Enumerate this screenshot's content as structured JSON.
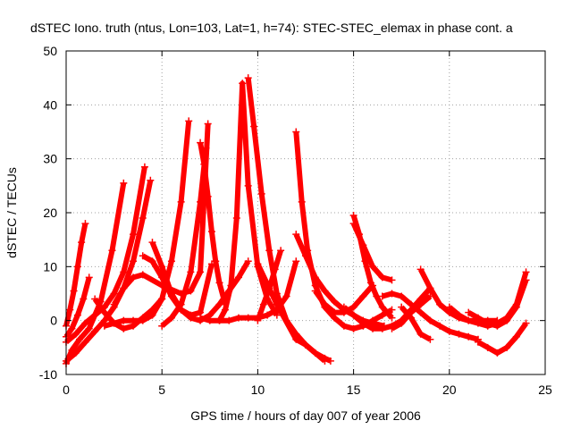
{
  "chart_data": {
    "type": "scatter",
    "title": "dSTEC Iono. truth (ntus, Lon=103, Lat=1, h=74): STEC-STEC_elemax in phase cont. a",
    "xlabel": "GPS time / hours of day 007 of year 2006",
    "ylabel": "dSTEC  / TECUs",
    "xlim": [
      0,
      25
    ],
    "ylim": [
      -10,
      50
    ],
    "x_ticks": [
      "0",
      "5",
      "10",
      "15",
      "20",
      "25"
    ],
    "y_ticks": [
      "-10",
      "0",
      "10",
      "20",
      "30",
      "40",
      "50"
    ],
    "grid": true,
    "marker": "+",
    "color": "#ff0000",
    "series": [
      {
        "x": [
          0.0,
          0.2,
          0.4,
          0.6,
          0.8,
          1.0
        ],
        "y": [
          -1.0,
          2.0,
          5.5,
          10.0,
          14.5,
          18.0
        ]
      },
      {
        "x": [
          0.0,
          0.3,
          0.6,
          0.9,
          1.2
        ],
        "y": [
          -3.0,
          -1.5,
          1.0,
          4.0,
          8.0
        ]
      },
      {
        "x": [
          0.0,
          0.3,
          0.7,
          1.2,
          1.8,
          2.4,
          3.0
        ],
        "y": [
          -8.0,
          -5.5,
          -3.5,
          -1.5,
          3.5,
          13.0,
          25.5
        ]
      },
      {
        "x": [
          0.0,
          0.5,
          1.0,
          1.5,
          2.0,
          2.5,
          3.0,
          3.5,
          4.1
        ],
        "y": [
          -4.0,
          -2.5,
          -0.5,
          1.0,
          2.5,
          5.0,
          9.0,
          16.0,
          28.5
        ]
      },
      {
        "x": [
          0.0,
          0.5,
          1.0,
          1.5,
          2.0,
          2.5,
          3.0,
          3.5,
          4.0,
          4.4
        ],
        "y": [
          -7.5,
          -6.0,
          -4.0,
          -2.0,
          0.0,
          2.5,
          6.0,
          11.0,
          19.0,
          26.0
        ]
      },
      {
        "x": [
          1.5,
          2.0,
          2.5,
          3.0,
          3.5,
          4.0,
          4.5,
          5.0
        ],
        "y": [
          4.0,
          1.5,
          -0.5,
          -1.5,
          -1.0,
          0.5,
          2.0,
          4.0
        ]
      },
      {
        "x": [
          2.0,
          2.5,
          3.0,
          3.5,
          4.0,
          4.5,
          5.0,
          5.5,
          6.0,
          6.4
        ],
        "y": [
          -1.0,
          -0.5,
          0.0,
          0.0,
          0.0,
          1.0,
          4.0,
          11.0,
          22.0,
          37.0
        ]
      },
      {
        "x": [
          2.5,
          3.0,
          3.5,
          4.0,
          5.0,
          6.0,
          6.5,
          7.0,
          7.4
        ],
        "y": [
          3.0,
          6.0,
          8.0,
          8.5,
          6.5,
          5.0,
          5.5,
          9.0,
          36.5
        ]
      },
      {
        "x": [
          4.0,
          4.5,
          5.0,
          5.5,
          6.0,
          6.5,
          7.0,
          7.6
        ],
        "y": [
          12.0,
          11.0,
          8.0,
          4.5,
          2.0,
          1.0,
          1.5,
          10.5
        ]
      },
      {
        "x": [
          4.5,
          5.0,
          5.5,
          6.0,
          6.5,
          7.0,
          7.5,
          8.0,
          8.5,
          9.0,
          9.5
        ],
        "y": [
          14.5,
          10.0,
          5.0,
          2.0,
          0.5,
          0.0,
          1.0,
          3.0,
          5.5,
          8.0,
          11.0
        ]
      },
      {
        "x": [
          5.0,
          5.5,
          6.0,
          6.5,
          7.0,
          7.3
        ],
        "y": [
          -1.0,
          0.5,
          3.0,
          9.0,
          22.0,
          32.0
        ]
      },
      {
        "x": [
          7.0,
          7.5,
          8.0,
          8.5,
          9.0,
          9.5,
          10.0,
          10.5,
          11.0,
          11.5,
          12.0
        ],
        "y": [
          0.5,
          0.0,
          0.0,
          0.0,
          0.5,
          0.5,
          0.5,
          1.0,
          2.0,
          4.5,
          11.0
        ]
      },
      {
        "x": [
          7.0,
          7.2,
          7.4,
          7.6,
          7.8,
          8.0,
          8.3
        ],
        "y": [
          33.0,
          29.0,
          23.0,
          16.5,
          11.0,
          7.0,
          3.0
        ]
      },
      {
        "x": [
          8.0,
          8.3,
          8.6,
          8.9,
          9.2,
          9.5,
          10.0,
          10.5,
          11.0
        ],
        "y": [
          0.0,
          2.0,
          6.5,
          19.0,
          44.0,
          25.0,
          10.0,
          4.0,
          1.0
        ]
      },
      {
        "x": [
          9.5,
          9.8,
          10.2,
          10.6,
          11.0,
          11.5,
          12.0,
          12.5,
          13.0,
          13.5
        ],
        "y": [
          45.0,
          36.0,
          23.5,
          13.0,
          5.0,
          0.0,
          -2.5,
          -4.5,
          -6.0,
          -7.5
        ]
      },
      {
        "x": [
          10.0,
          10.3,
          10.6,
          10.9,
          11.2
        ],
        "y": [
          0.0,
          3.0,
          6.0,
          9.5,
          13.0
        ]
      },
      {
        "x": [
          10.0,
          11.0,
          12.0,
          12.5,
          13.0,
          13.5,
          13.8
        ],
        "y": [
          10.5,
          3.0,
          -3.5,
          -4.5,
          -6.0,
          -7.0,
          -7.5
        ]
      },
      {
        "x": [
          12.0,
          12.3,
          12.6,
          13.0,
          13.5,
          14.0,
          14.5,
          15.0,
          15.5,
          16.0,
          16.5,
          17.0
        ],
        "y": [
          35.0,
          22.0,
          13.0,
          6.5,
          2.5,
          0.5,
          -1.0,
          -1.5,
          -1.0,
          0.0,
          1.0,
          2.0
        ]
      },
      {
        "x": [
          12.0,
          12.5,
          13.0,
          13.5,
          14.0,
          14.5,
          15.0,
          15.5,
          16.0,
          16.6
        ],
        "y": [
          16.0,
          12.0,
          8.0,
          5.5,
          3.5,
          2.0,
          1.0,
          0.0,
          -0.5,
          -1.0
        ]
      },
      {
        "x": [
          13.0,
          13.5,
          14.0,
          14.5,
          15.0,
          15.5,
          16.0
        ],
        "y": [
          5.5,
          3.0,
          1.5,
          1.5,
          2.5,
          4.5,
          6.5
        ]
      },
      {
        "x": [
          14.5,
          15.0,
          15.5,
          16.0,
          16.5,
          17.0,
          17.5,
          18.0,
          18.5,
          19.0
        ],
        "y": [
          2.5,
          1.0,
          -0.5,
          -1.5,
          -1.5,
          -1.0,
          0.0,
          2.0,
          4.0,
          6.0
        ]
      },
      {
        "x": [
          15.0,
          15.3,
          15.6,
          15.9,
          16.2,
          16.5,
          17.0
        ],
        "y": [
          19.5,
          16.0,
          11.0,
          7.0,
          4.5,
          2.5,
          0.5
        ]
      },
      {
        "x": [
          15.0,
          15.5,
          16.0,
          16.5,
          17.0
        ],
        "y": [
          18.0,
          14.0,
          10.0,
          8.0,
          7.5
        ]
      },
      {
        "x": [
          16.5,
          17.0,
          17.5,
          18.0,
          18.5,
          19.0,
          19.5,
          20.0,
          20.5,
          21.0,
          21.5
        ],
        "y": [
          4.5,
          5.0,
          4.5,
          3.0,
          1.5,
          0.0,
          -1.0,
          -2.0,
          -2.5,
          -3.0,
          -3.5
        ]
      },
      {
        "x": [
          17.0,
          17.5,
          18.0,
          18.5,
          19.0
        ],
        "y": [
          -1.5,
          -0.5,
          1.5,
          3.0,
          4.5
        ]
      },
      {
        "x": [
          17.5,
          18.0,
          18.5,
          19.0
        ],
        "y": [
          2.5,
          0.5,
          -2.5,
          -3.5
        ]
      },
      {
        "x": [
          18.5,
          19.0,
          19.5,
          20.0,
          20.5,
          21.0,
          21.5,
          22.0,
          22.5
        ],
        "y": [
          9.5,
          6.0,
          3.0,
          1.5,
          0.5,
          0.0,
          0.0,
          0.0,
          0.0
        ]
      },
      {
        "x": [
          20.0,
          20.5,
          21.0,
          21.5,
          22.0,
          22.5,
          23.0,
          23.5,
          24.0
        ],
        "y": [
          2.5,
          1.0,
          0.0,
          -0.5,
          -1.0,
          -0.5,
          0.5,
          3.0,
          9.0
        ]
      },
      {
        "x": [
          21.0,
          21.5,
          22.0,
          22.5,
          23.0,
          23.5,
          24.0
        ],
        "y": [
          1.5,
          0.5,
          -0.5,
          -1.0,
          0.0,
          2.5,
          7.5
        ]
      },
      {
        "x": [
          21.5,
          22.0,
          22.5,
          23.0,
          23.5,
          24.0
        ],
        "y": [
          -4.0,
          -5.0,
          -6.0,
          -5.0,
          -3.0,
          -0.5
        ]
      }
    ]
  }
}
